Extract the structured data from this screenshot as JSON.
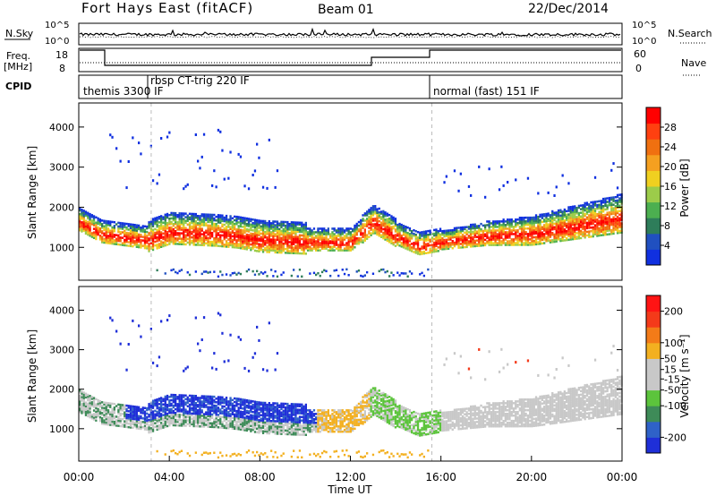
{
  "header": {
    "title": "Fort Hays East (fitACF)",
    "beam": "Beam 01",
    "date": "22/Dec/2014"
  },
  "strip": {
    "nsky_label": "N.Sky",
    "nsearch_label": "N.Search",
    "noise_ticks": [
      "10^5",
      "10^0"
    ],
    "freq_label": "Freq.",
    "freq_unit": "[MHz]",
    "freq_ticks": [
      "18",
      "8"
    ],
    "nave_label": "Nave",
    "nave_ticks": [
      "60",
      "0"
    ],
    "cpid_label": "CPID",
    "cpid_segments": [
      {
        "name": "themis 3300 IF",
        "start_hour": 0
      },
      {
        "name": "rbsp CT-trig 220 IF",
        "start_hour": 3.2
      },
      {
        "name": "normal (fast) 151 IF",
        "start_hour": 15.6
      }
    ]
  },
  "colors": {
    "power_scale": [
      "#1030e0",
      "#2050c0",
      "#2e7d5a",
      "#4caf50",
      "#9ccc4a",
      "#f0d020",
      "#f5a020",
      "#f07010",
      "#ff4010",
      "#ff0000"
    ],
    "velocity_scale": [
      "#1f2fd8",
      "#2f62c8",
      "#3e8b58",
      "#5cc43c",
      "#c8c8c8",
      "#c8c8c8",
      "#f3b020",
      "#f37b18",
      "#f43a1a",
      "#ff1414"
    ],
    "grey": "#c8c8c8",
    "dash": "#bbbbbb"
  },
  "chart_data": [
    {
      "type": "heatmap",
      "name": "Power",
      "xlabel": "",
      "ylabel": "Slant Range [km]",
      "xlim": [
        0,
        24
      ],
      "ylim": [
        180,
        4600
      ],
      "y_ticks": [
        "1000",
        "2000",
        "3000",
        "4000"
      ],
      "colorbar_label": "Power [dB]",
      "colorbar_ticks": [
        "4",
        "8",
        "12",
        "16",
        "20",
        "24",
        "28"
      ],
      "colorbar_range": [
        0,
        32
      ],
      "echo_band_center_km": [
        [
          0,
          1600
        ],
        [
          1,
          1300
        ],
        [
          3,
          1150
        ],
        [
          4,
          1350
        ],
        [
          6,
          1300
        ],
        [
          7,
          1250
        ],
        [
          8,
          1150
        ],
        [
          10,
          1100
        ],
        [
          12,
          1100
        ],
        [
          13,
          1600
        ],
        [
          14,
          1250
        ],
        [
          15,
          1000
        ],
        [
          16,
          1100
        ],
        [
          18,
          1250
        ],
        [
          20,
          1300
        ],
        [
          22,
          1500
        ],
        [
          24,
          1700
        ]
      ]
    },
    {
      "type": "heatmap",
      "name": "Velocity",
      "xlabel": "Time UT",
      "ylabel": "Slant Range [km]",
      "xlim": [
        0,
        24
      ],
      "ylim": [
        180,
        4600
      ],
      "x_ticks": [
        "00:00",
        "04:00",
        "08:00",
        "12:00",
        "16:00",
        "20:00",
        "00:00"
      ],
      "y_ticks": [
        "1000",
        "2000",
        "3000",
        "4000"
      ],
      "colorbar_label": "Velocity [m s⁻¹]",
      "colorbar_ticks": [
        "200",
        "100",
        "50",
        "15",
        "-15",
        "-50",
        "-100",
        "-200"
      ],
      "colorbar_range": [
        -250,
        250
      ]
    }
  ]
}
